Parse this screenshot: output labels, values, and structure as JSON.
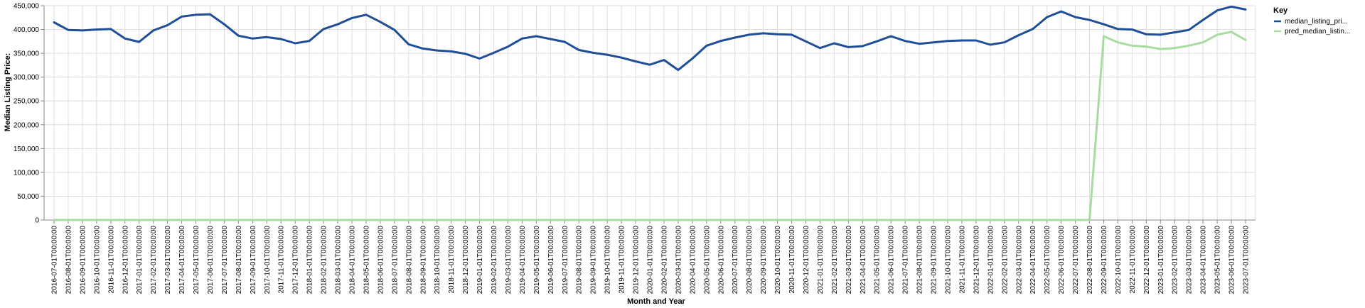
{
  "chart_data": {
    "type": "line",
    "xlabel": "Month and Year",
    "ylabel": "Median Listing Price:",
    "ylim": [
      0,
      450000
    ],
    "y_ticks": [
      0,
      50000,
      100000,
      150000,
      200000,
      250000,
      300000,
      350000,
      400000,
      450000
    ],
    "y_tick_labels": [
      "0",
      "50,000",
      "100,000",
      "150,000",
      "200,000",
      "250,000",
      "300,000",
      "350,000",
      "400,000",
      "450,000"
    ],
    "grid": true,
    "legend": {
      "title": "Key",
      "position": "right"
    },
    "x": [
      "2016-07-01T00:00:00",
      "2016-08-01T00:00:00",
      "2016-09-01T00:00:00",
      "2016-10-01T00:00:00",
      "2016-11-01T00:00:00",
      "2016-12-01T00:00:00",
      "2017-01-01T00:00:00",
      "2017-02-01T00:00:00",
      "2017-03-01T00:00:00",
      "2017-04-01T00:00:00",
      "2017-05-01T00:00:00",
      "2017-06-01T00:00:00",
      "2017-07-01T00:00:00",
      "2017-08-01T00:00:00",
      "2017-09-01T00:00:00",
      "2017-10-01T00:00:00",
      "2017-11-01T00:00:00",
      "2017-12-01T00:00:00",
      "2018-01-01T00:00:00",
      "2018-02-01T00:00:00",
      "2018-03-01T00:00:00",
      "2018-04-01T00:00:00",
      "2018-05-01T00:00:00",
      "2018-06-01T00:00:00",
      "2018-07-01T00:00:00",
      "2018-08-01T00:00:00",
      "2018-09-01T00:00:00",
      "2018-10-01T00:00:00",
      "2018-11-01T00:00:00",
      "2018-12-01T00:00:00",
      "2019-01-01T00:00:00",
      "2019-02-01T00:00:00",
      "2019-03-01T00:00:00",
      "2019-04-01T00:00:00",
      "2019-05-01T00:00:00",
      "2019-06-01T00:00:00",
      "2019-07-01T00:00:00",
      "2019-08-01T00:00:00",
      "2019-09-01T00:00:00",
      "2019-10-01T00:00:00",
      "2019-11-01T00:00:00",
      "2019-12-01T00:00:00",
      "2020-01-01T00:00:00",
      "2020-02-01T00:00:00",
      "2020-03-01T00:00:00",
      "2020-04-01T00:00:00",
      "2020-05-01T00:00:00",
      "2020-06-01T00:00:00",
      "2020-07-01T00:00:00",
      "2020-08-01T00:00:00",
      "2020-09-01T00:00:00",
      "2020-10-01T00:00:00",
      "2020-11-01T00:00:00",
      "2020-12-01T00:00:00",
      "2021-01-01T00:00:00",
      "2021-02-01T00:00:00",
      "2021-03-01T00:00:00",
      "2021-04-01T00:00:00",
      "2021-05-01T00:00:00",
      "2021-06-01T00:00:00",
      "2021-07-01T00:00:00",
      "2021-08-01T00:00:00",
      "2021-09-01T00:00:00",
      "2021-10-01T00:00:00",
      "2021-11-01T00:00:00",
      "2021-12-01T00:00:00",
      "2022-01-01T00:00:00",
      "2022-02-01T00:00:00",
      "2022-03-01T00:00:00",
      "2022-04-01T00:00:00",
      "2022-05-01T00:00:00",
      "2022-06-01T00:00:00",
      "2022-07-01T00:00:00",
      "2022-08-01T00:00:00",
      "2022-09-01T00:00:00",
      "2022-10-01T00:00:00",
      "2022-11-01T00:00:00",
      "2022-12-01T00:00:00",
      "2023-01-01T00:00:00",
      "2023-02-01T00:00:00",
      "2023-03-01T00:00:00",
      "2023-04-01T00:00:00",
      "2023-05-01T00:00:00",
      "2023-06-01T00:00:00",
      "2023-07-01T00:00:00"
    ],
    "series": [
      {
        "name": "median_listing_pri...",
        "color": "#1f4e99",
        "values": [
          415000,
          399000,
          398000,
          400000,
          401000,
          381000,
          374000,
          398000,
          409000,
          427000,
          431000,
          432000,
          411000,
          387000,
          381000,
          384000,
          380000,
          371000,
          376000,
          401000,
          411000,
          424000,
          431000,
          416000,
          399000,
          369000,
          360000,
          356000,
          354000,
          349000,
          339000,
          351000,
          364000,
          381000,
          386000,
          380000,
          374000,
          357000,
          351000,
          347000,
          341000,
          333000,
          326000,
          336000,
          315000,
          339000,
          366000,
          376000,
          383000,
          389000,
          392000,
          390000,
          389000,
          375000,
          361000,
          371000,
          363000,
          365000,
          375000,
          386000,
          376000,
          370000,
          373000,
          376000,
          377000,
          377000,
          368000,
          373000,
          388000,
          401000,
          426000,
          438000,
          426000,
          420000,
          411000,
          401000,
          400000,
          390000,
          389000,
          394000,
          399000,
          420000,
          440000,
          448000,
          442000
        ]
      },
      {
        "name": "pred_median_listin...",
        "color": "#a8dba0",
        "values": [
          0,
          0,
          0,
          0,
          0,
          0,
          0,
          0,
          0,
          0,
          0,
          0,
          0,
          0,
          0,
          0,
          0,
          0,
          0,
          0,
          0,
          0,
          0,
          0,
          0,
          0,
          0,
          0,
          0,
          0,
          0,
          0,
          0,
          0,
          0,
          0,
          0,
          0,
          0,
          0,
          0,
          0,
          0,
          0,
          0,
          0,
          0,
          0,
          0,
          0,
          0,
          0,
          0,
          0,
          0,
          0,
          0,
          0,
          0,
          0,
          0,
          0,
          0,
          0,
          0,
          0,
          0,
          0,
          0,
          0,
          0,
          0,
          0,
          0,
          386000,
          373000,
          366000,
          364000,
          359000,
          361000,
          366000,
          373000,
          389000,
          395000,
          378000
        ]
      }
    ]
  }
}
